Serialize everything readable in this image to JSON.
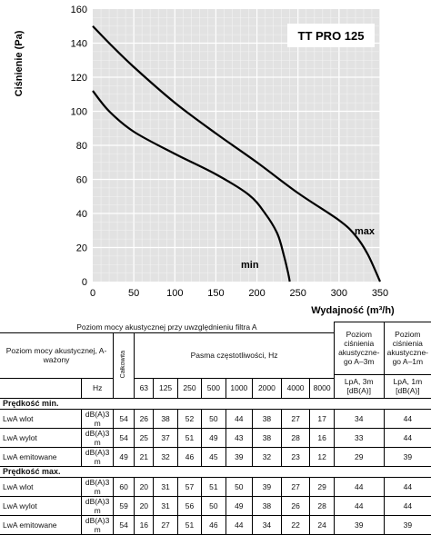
{
  "chart_data": {
    "type": "line",
    "title": "TT PRO 125",
    "xlabel": "Wydajność (m³/h)",
    "ylabel": "Ciśnienie (Pa)",
    "xlim": [
      0,
      350
    ],
    "ylim": [
      0,
      160
    ],
    "xticks": [
      "0",
      "50",
      "100",
      "150",
      "200",
      "250",
      "300",
      "350"
    ],
    "yticks": [
      "0",
      "20",
      "40",
      "60",
      "80",
      "100",
      "120",
      "140",
      "160"
    ],
    "grid": "on",
    "series": [
      {
        "name": "max",
        "x": [
          0,
          20,
          50,
          100,
          150,
          200,
          250,
          300,
          320,
          335,
          350
        ],
        "y": [
          150,
          140,
          126,
          105,
          87,
          70,
          52,
          36,
          27,
          16,
          0
        ]
      },
      {
        "name": "min",
        "x": [
          0,
          20,
          50,
          100,
          150,
          190,
          210,
          225,
          233,
          238,
          240
        ],
        "y": [
          112,
          100,
          88,
          75,
          63,
          51,
          40,
          28,
          15,
          5,
          0
        ]
      }
    ]
  },
  "table": {
    "title": "Poziom mocy akustycznej przy uwzględnieniu filtra A",
    "row_header": "Poziom mocy akustycznej, A-ważony",
    "col_total": "Całkowita",
    "bands_header": "Pasma częstotliwości, Hz",
    "lpa3_header": "Poziom ciśnienia akustyczne-go A–3m",
    "lpa1_header": "Poziom ciśnienia akustyczne-go A–1m",
    "hz_label": "Hz",
    "freqs": [
      "63",
      "125",
      "250",
      "500",
      "1000",
      "2000",
      "4000",
      "8000"
    ],
    "lpa3_unit": "LpA, 3m [dB(A)]",
    "lpa1_unit": "LpA, 1m [dB(A)]",
    "sections": [
      {
        "title": "Prędkość min.",
        "rows": [
          {
            "label": "LwA wlot",
            "unit": "dB(A)3 m",
            "values": [
              "54",
              "26",
              "38",
              "52",
              "50",
              "44",
              "38",
              "27",
              "17",
              "34",
              "44"
            ]
          },
          {
            "label": "LwA wylot",
            "unit": "dB(A)3 m",
            "values": [
              "54",
              "25",
              "37",
              "51",
              "49",
              "43",
              "38",
              "28",
              "16",
              "33",
              "44"
            ]
          },
          {
            "label": "LwA emitowane",
            "unit": "dB(A)3 m",
            "values": [
              "49",
              "21",
              "32",
              "46",
              "45",
              "39",
              "32",
              "23",
              "12",
              "29",
              "39"
            ]
          }
        ]
      },
      {
        "title": "Prędkość max.",
        "rows": [
          {
            "label": "LwA wlot",
            "unit": "dB(A)3 m",
            "values": [
              "60",
              "20",
              "31",
              "57",
              "51",
              "50",
              "39",
              "27",
              "29",
              "44",
              "44"
            ]
          },
          {
            "label": "LwA wylot",
            "unit": "dB(A)3 m",
            "values": [
              "59",
              "20",
              "31",
              "56",
              "50",
              "49",
              "38",
              "26",
              "28",
              "44",
              "44"
            ]
          },
          {
            "label": "LwA emitowane",
            "unit": "dB(A)3 m",
            "values": [
              "54",
              "16",
              "27",
              "51",
              "46",
              "44",
              "34",
              "22",
              "24",
              "39",
              "39"
            ]
          }
        ]
      }
    ]
  }
}
